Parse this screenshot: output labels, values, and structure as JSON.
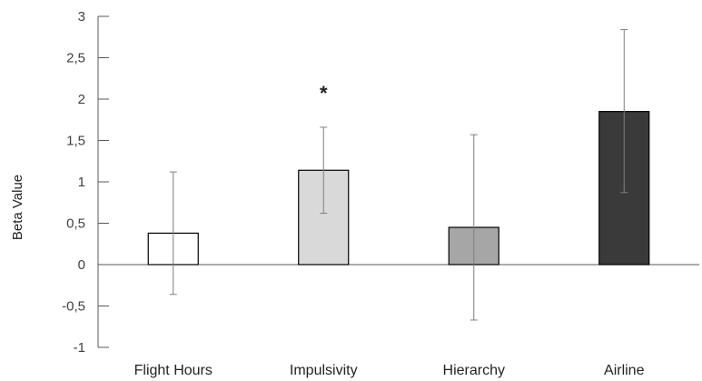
{
  "chart_data": {
    "type": "bar",
    "title": "",
    "xlabel": "",
    "ylabel": "Beta Value",
    "ylim": [
      -1,
      3
    ],
    "yticks": [
      -1,
      -0.5,
      0,
      0.5,
      1,
      1.5,
      2,
      2.5,
      3
    ],
    "ytick_labels": [
      "-1",
      "-0,5",
      "0",
      "0,5",
      "1",
      "1,5",
      "2",
      "2,5",
      "3"
    ],
    "categories": [
      "Flight Hours",
      "Impulsivity",
      "Hierarchy",
      "Airline"
    ],
    "values": [
      0.38,
      1.14,
      0.45,
      1.85
    ],
    "error_low": [
      -0.36,
      0.62,
      -0.67,
      0.87
    ],
    "error_high": [
      1.12,
      1.66,
      1.57,
      2.84
    ],
    "bar_colors": [
      "#ffffff",
      "#d9d9d9",
      "#a6a6a6",
      "#3a3a3a"
    ],
    "annotations": [
      {
        "category": "Impulsivity",
        "text": "*"
      }
    ],
    "grid": false,
    "legend": "none"
  }
}
